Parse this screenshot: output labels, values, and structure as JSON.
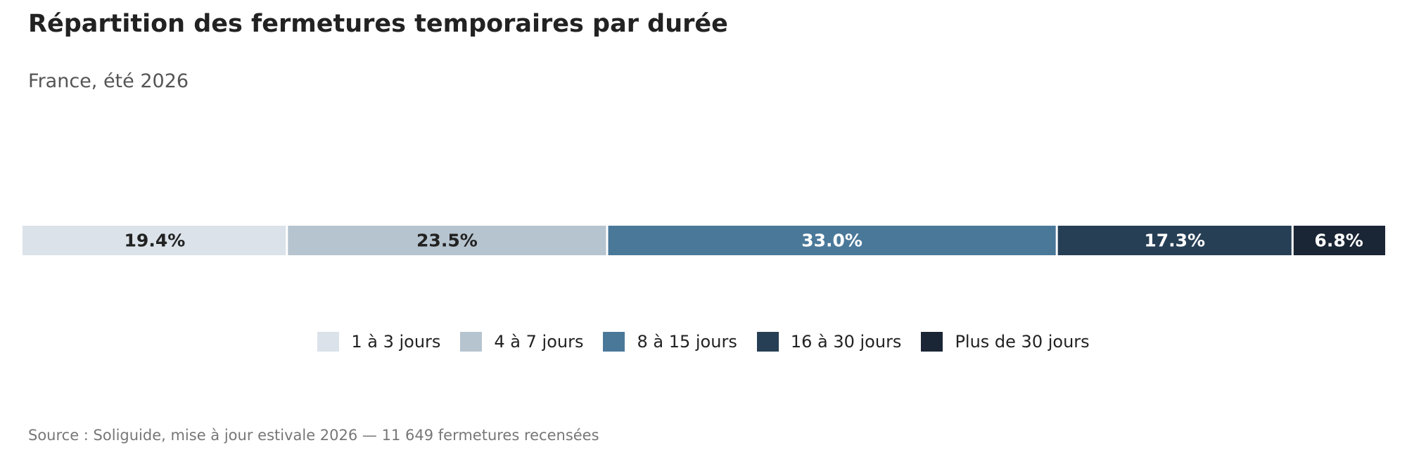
{
  "chart_data": {
    "type": "bar",
    "orientation": "horizontal-stacked-100",
    "title": "Répartition des fermetures temporaires par durée",
    "subtitle": "France, été 2026",
    "categories": [
      "1 à 3 jours",
      "4 à 7 jours",
      "8 à 15 jours",
      "16 à 30 jours",
      "Plus de 30 jours"
    ],
    "values": [
      19.4,
      23.5,
      33.0,
      17.3,
      6.8
    ],
    "value_labels": [
      "19.4%",
      "23.5%",
      "33.0%",
      "17.3%",
      "6.8%"
    ],
    "colors": [
      "#dbe2e9",
      "#b6c4cf",
      "#4a7899",
      "#263f55",
      "#1a2535"
    ],
    "label_colors": [
      "#222222",
      "#222222",
      "#ffffff",
      "#ffffff",
      "#ffffff"
    ],
    "xlim": [
      0,
      100
    ],
    "grid": false,
    "legend_position": "bottom-center",
    "source": "Source : Soliguide, mise à jour estivale 2026 — 11 649 fermetures recensées"
  }
}
